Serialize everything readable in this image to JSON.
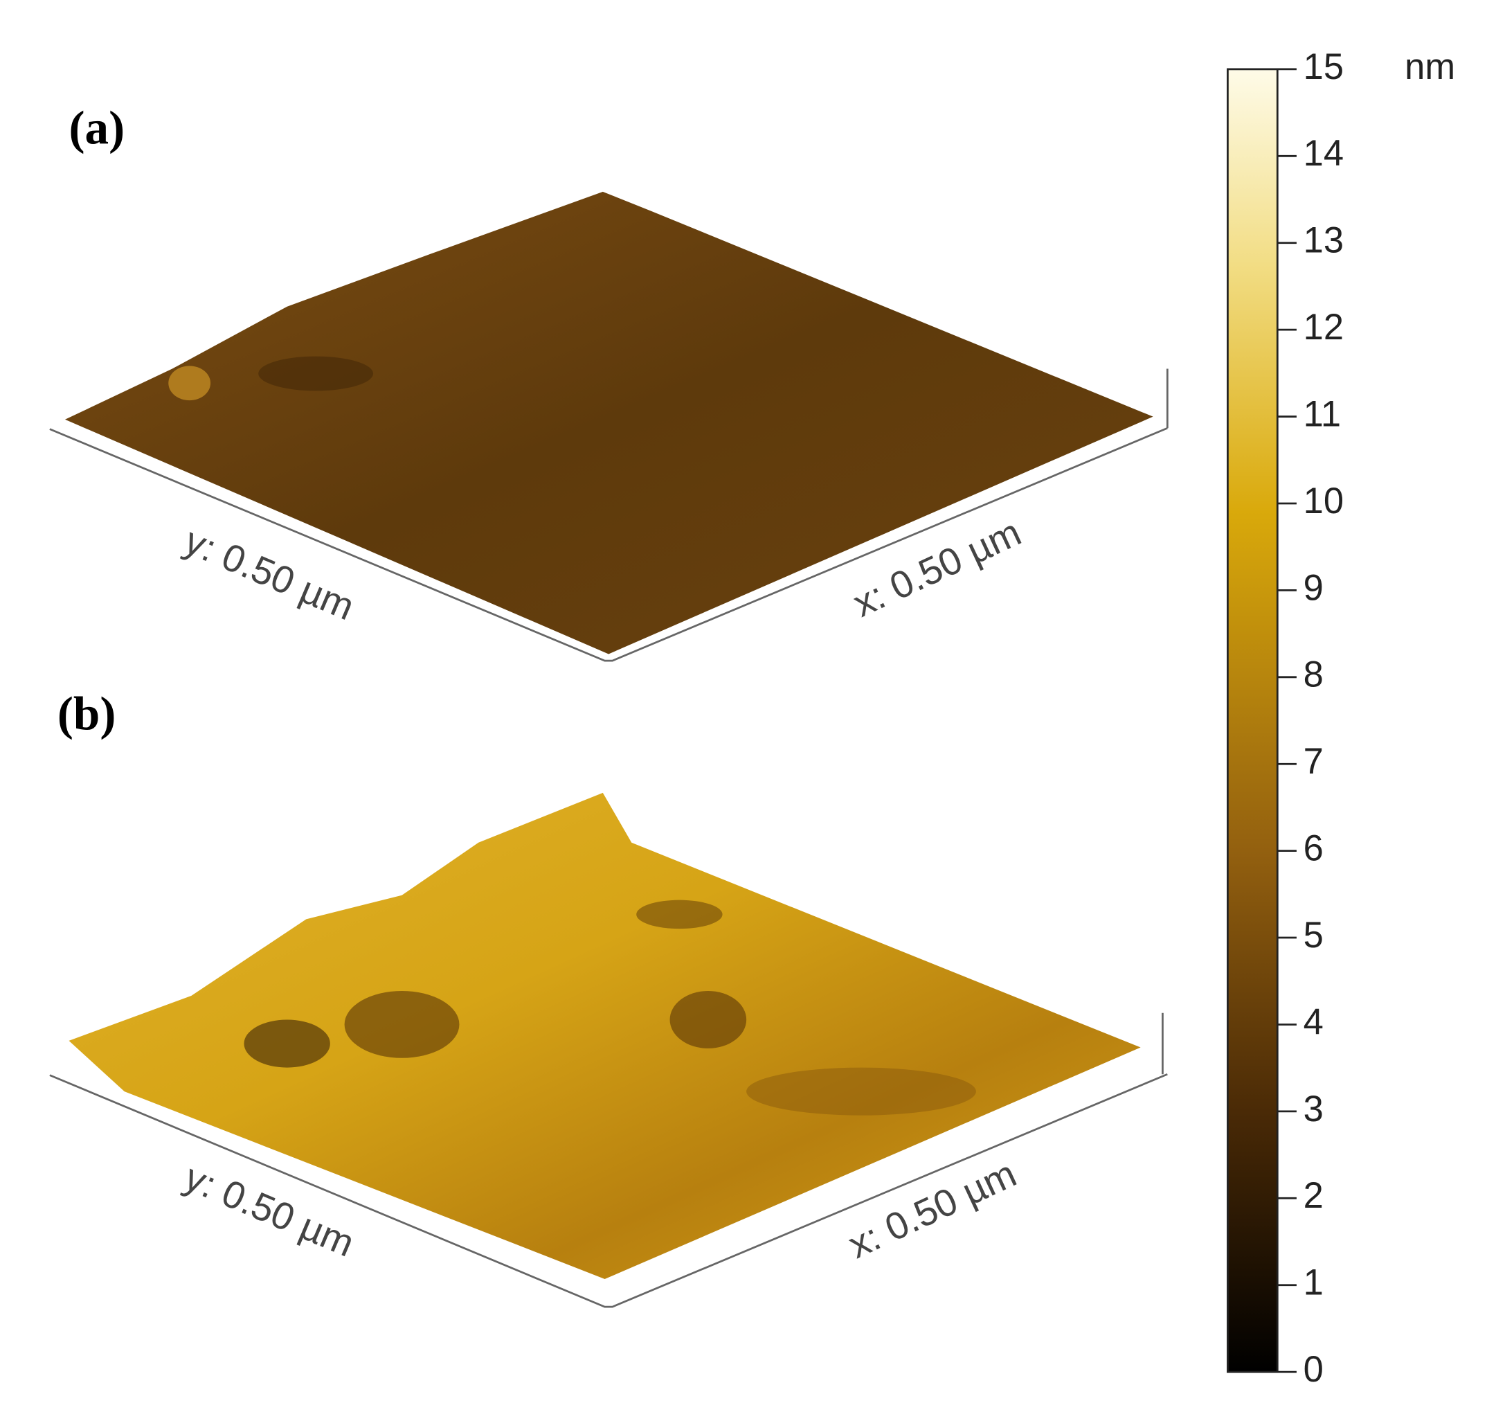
{
  "panels": [
    {
      "label": "(a)",
      "x_axis": "x: 0.50 µm",
      "y_axis": "y: 0.50 µm"
    },
    {
      "label": "(b)",
      "x_axis": "x: 0.50 µm",
      "y_axis": "y: 0.50 µm"
    }
  ],
  "colorbar": {
    "unit": "nm",
    "lim": [
      0,
      15
    ],
    "ticks": [
      0,
      1,
      2,
      3,
      4,
      5,
      6,
      7,
      8,
      9,
      10,
      11,
      12,
      13,
      14,
      15
    ]
  }
}
